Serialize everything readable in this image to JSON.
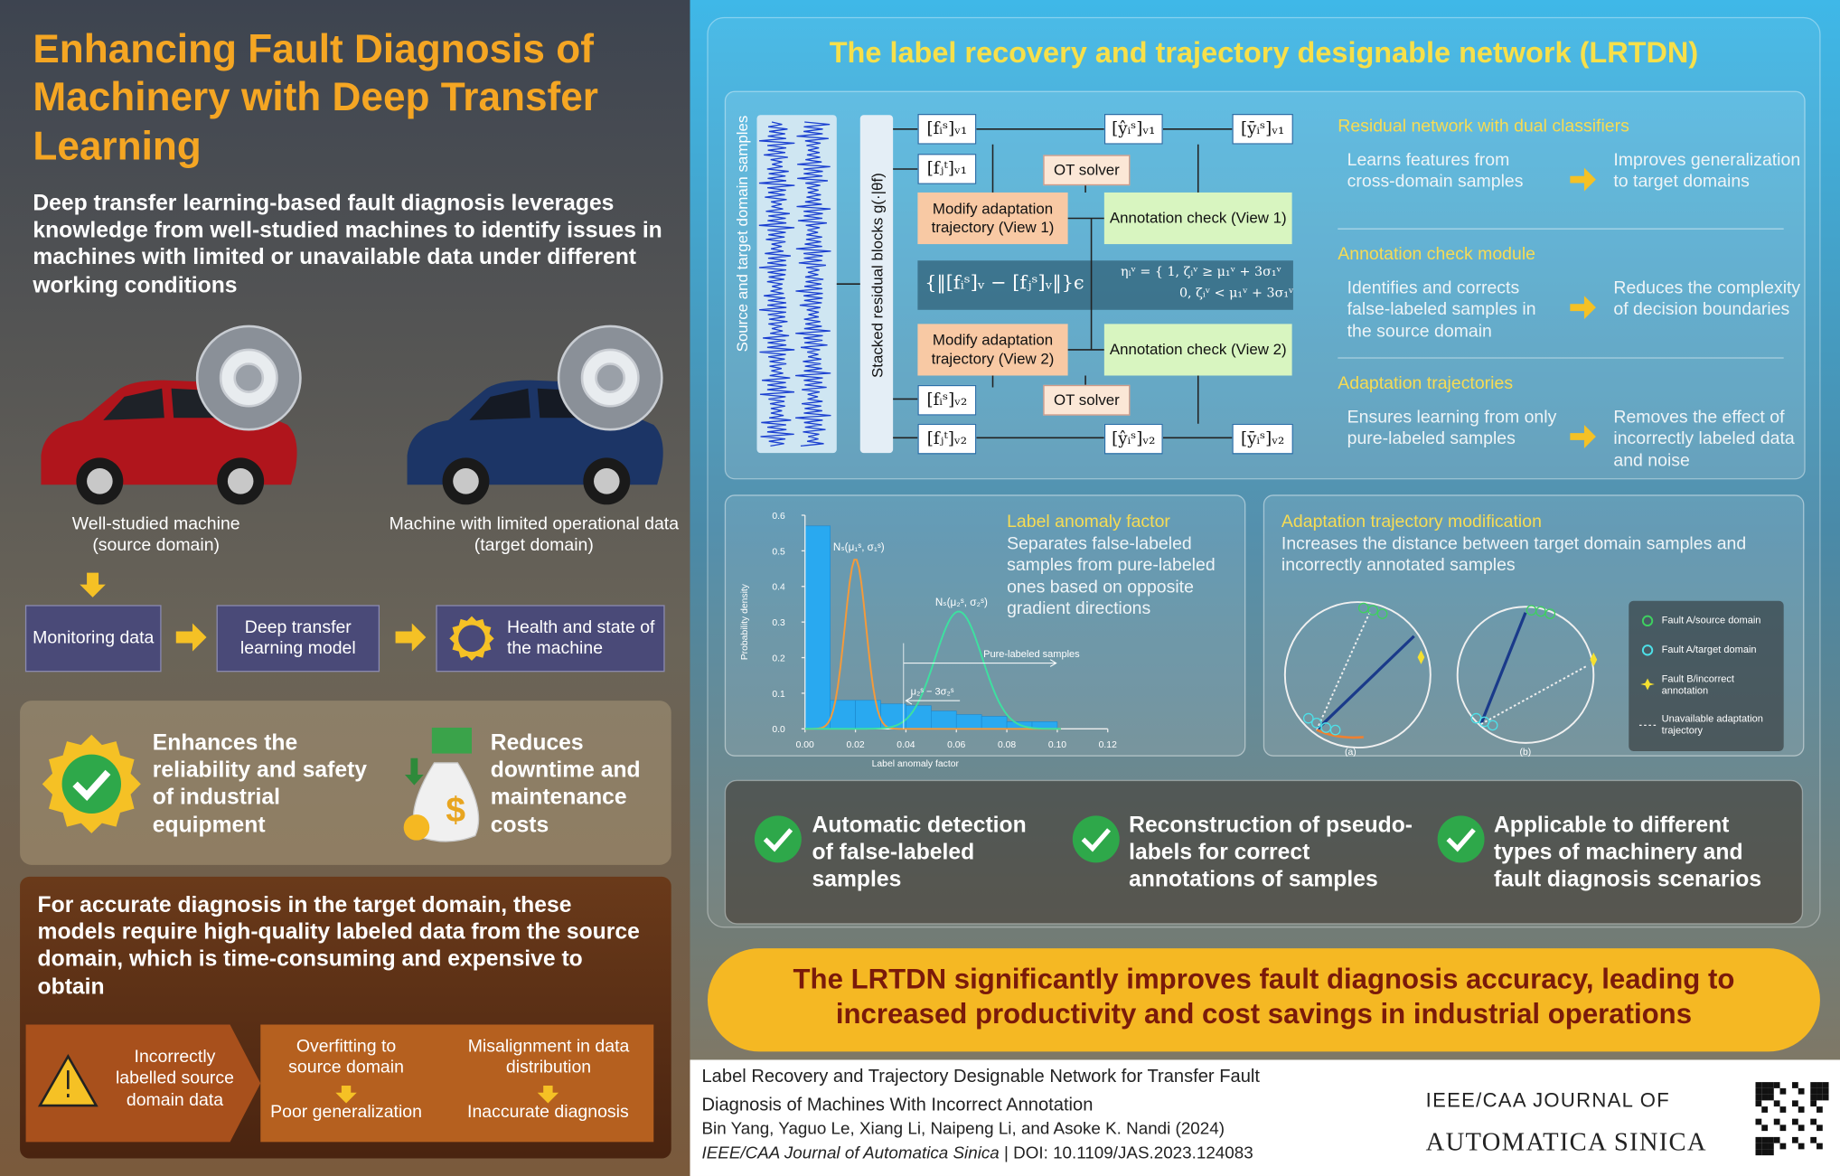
{
  "left": {
    "title": "Enhancing Fault Diagnosis of Machinery with Deep Transfer Learning",
    "intro": "Deep transfer learning-based fault diagnosis leverages knowledge from well-studied machines to identify issues in machines with limited or unavailable data under different working conditions",
    "source_machine": "Well-studied machine (source domain)",
    "target_machine": "Machine with limited operational data (target domain)",
    "flow": [
      "Monitoring data",
      "Deep transfer learning model",
      "Health and state of the machine"
    ],
    "benefits": [
      "Enhances the reliability and safety of industrial equipment",
      "Reduces downtime and maintenance costs"
    ],
    "challenge": "For accurate diagnosis in the target domain, these models require high-quality labeled data from the source domain, which is time-consuming and expensive to obtain",
    "issue": "Incorrectly labelled source domain data",
    "effects": [
      {
        "cause": "Overfitting to source domain",
        "result": "Poor generalization"
      },
      {
        "cause": "Misalignment in data distribution",
        "result": "Inaccurate diagnosis"
      }
    ]
  },
  "right": {
    "title": "The label recovery and trajectory designable network (LRTDN)",
    "diagram": {
      "samples": "Source and target domain samples",
      "blocks": "Stacked residual blocks g(·|θf)",
      "fs_v1": "[fᵢˢ]ᵥ₁",
      "ft_v1": "[fⱼᵗ]ᵥ₁",
      "yhat_v1": "[ŷᵢˢ]ᵥ₁",
      "ybar_v1": "[ȳᵢˢ]ᵥ₁",
      "fs_v2": "[fᵢˢ]ᵥ₂",
      "ft_v2": "[fⱼᵗ]ᵥ₂",
      "yhat_v2": "[ŷᵢˢ]ᵥ₂",
      "ybar_v2": "[ȳᵢˢ]ᵥ₂",
      "ot_solver": "OT solver",
      "modify_v1": "Modify adaptation trajectory (View 1)",
      "modify_v2": "Modify adaptation trajectory (View 2)",
      "check_v1": "Annotation check (View 1)",
      "check_v2": "Annotation check (View 2)",
      "distance": "{‖[fᵢˢ]ᵥ − [fⱼˢ]ᵥ‖}ϵ",
      "eta_1": "ηᵢᵛ = { 1, ζᵢᵛ ≥ μ₁ᵛ + 3σ₁ᵛ",
      "eta_0": "0, ζᵢᵛ < μ₁ᵛ + 3σ₁ᵛ"
    },
    "modules": [
      {
        "name": "Residual network with dual classifiers",
        "does": "Learns features from cross-domain samples",
        "result": "Improves generalization to target domains"
      },
      {
        "name": "Annotation check module",
        "does": "Identifies and corrects false-labeled samples in the source domain",
        "result": "Reduces the complexity of decision boundaries"
      },
      {
        "name": "Adaptation trajectories",
        "does": "Ensures learning from only pure-labeled samples",
        "result": "Removes the effect of incorrectly labeled data and noise"
      }
    ],
    "anomaly": {
      "title": "Label anomaly factor",
      "text": "Separates false-labeled samples from pure-labeled ones based on opposite gradient directions",
      "chart": {
        "type": "histogram",
        "xlabel": "Label anomaly factor",
        "ylabel": "Probability density",
        "bins": [
          0.0,
          0.01,
          0.02,
          0.03,
          0.04,
          0.05,
          0.06,
          0.07,
          0.08,
          0.09,
          0.1
        ],
        "values": [
          0.57,
          0.08,
          0.08,
          0.07,
          0.065,
          0.05,
          0.04,
          0.035,
          0.02,
          0.02
        ],
        "color": "#29a9f0",
        "xlim": [
          0.0,
          0.12
        ],
        "xticks": [
          {
            "value": 0.0,
            "label": "0.00"
          },
          {
            "value": 0.02,
            "label": "0.02"
          },
          {
            "value": 0.04,
            "label": "0.04"
          },
          {
            "value": 0.06,
            "label": "0.06"
          },
          {
            "value": 0.08,
            "label": "0.08"
          },
          {
            "value": 0.1,
            "label": "0.10"
          },
          {
            "value": 0.12,
            "label": "0.12"
          }
        ],
        "ylim": [
          0.0,
          0.6
        ],
        "yticks": [
          {
            "value": 0.0,
            "label": "0.0"
          },
          0.1,
          0.2,
          0.3,
          0.4,
          0.5,
          0.6
        ],
        "source_curve": "Nₛ(μ₁ˢ, σ₁ˢ)",
        "target_curve": "Nₛ(μ₂ˢ, σ₂ˢ)",
        "pure_label": "Pure-labeled samples",
        "threshold": "μ₂ˢ − 3σ₂ˢ"
      }
    },
    "trajectory": {
      "title": "Adaptation trajectory modification",
      "text": "Increases the distance between target domain samples and incorrectly annotated samples",
      "panels": [
        "(a)",
        "(b)"
      ],
      "legend": [
        "Fault A/source domain",
        "Fault A/target domain",
        "Fault B/incorrect annotation",
        "Unavailable adaptation trajectory"
      ]
    },
    "advantages": [
      "Automatic detection of false-labeled samples",
      "Reconstruction of pseudo-labels for correct annotations of samples",
      "Applicable to different types of machinery and fault diagnosis scenarios"
    ],
    "conclusion": "The LRTDN significantly improves fault diagnosis accuracy, leading to increased productivity and cost savings in industrial operations"
  },
  "citation": {
    "title": "Label Recovery and Trajectory Designable Network for Transfer Fault Diagnosis of Machines With Incorrect Annotation",
    "authors": "Bin Yang, Yaguo Le, Xiang Li, Naipeng Li, and Asoke K. Nandi (2024)",
    "journal": "IEEE/CAA Journal of Automatica Sinica",
    "doi": "| DOI: 10.1109/JAS.2023.124083",
    "logo_top": "IEEE/CAA JOURNAL OF",
    "logo_bottom": "AUTOMATICA SINICA"
  }
}
